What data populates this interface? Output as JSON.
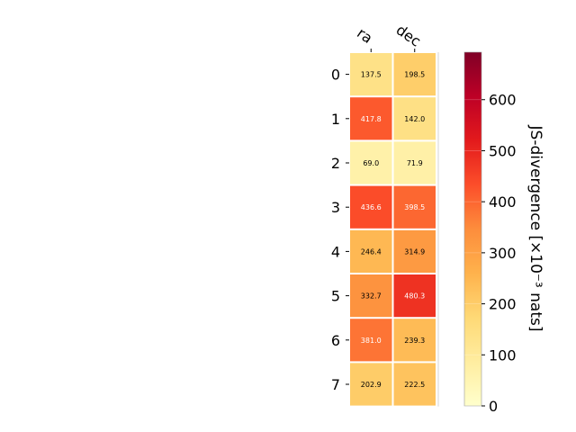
{
  "chart_data": {
    "type": "heatmap",
    "columns": [
      "ra",
      "dec"
    ],
    "rows": [
      "0",
      "1",
      "2",
      "3",
      "4",
      "5",
      "6",
      "7"
    ],
    "values": [
      [
        137.5,
        198.5
      ],
      [
        417.8,
        142.0
      ],
      [
        69.0,
        71.9
      ],
      [
        436.6,
        398.5
      ],
      [
        246.4,
        314.9
      ],
      [
        332.7,
        480.3
      ],
      [
        381.0,
        239.3
      ],
      [
        202.9,
        222.5
      ]
    ],
    "cell_labels": [
      [
        "137.5",
        "198.5"
      ],
      [
        "417.8",
        "142.0"
      ],
      [
        "69.0",
        "71.9"
      ],
      [
        "436.6",
        "398.5"
      ],
      [
        "246.4",
        "314.9"
      ],
      [
        "332.7",
        "480.3"
      ],
      [
        "381.0",
        "239.3"
      ],
      [
        "202.9",
        "222.5"
      ]
    ],
    "colorbar": {
      "label": "JS-divergence [×10⁻³ nats]",
      "range": [
        0,
        693
      ],
      "ticks": [
        "0",
        "100",
        "200",
        "300",
        "400",
        "500",
        "600"
      ],
      "tick_values": [
        0,
        100,
        200,
        300,
        400,
        500,
        600
      ],
      "colormap": "YlOrRd"
    }
  }
}
